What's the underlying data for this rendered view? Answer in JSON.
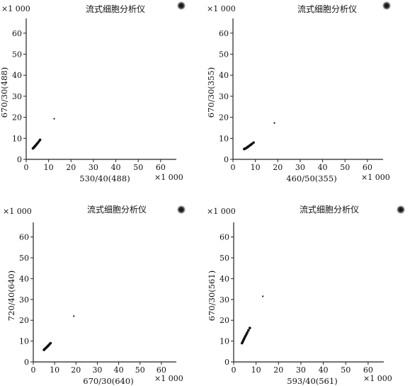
{
  "chart_data": [
    {
      "type": "scatter",
      "title": "流式细胞分析仪",
      "xlabel": "530/40(488)",
      "ylabel": "670/30(488)",
      "x_multiplier": "×1 000",
      "y_multiplier": "×1 000",
      "xlim": [
        0,
        67
      ],
      "ylim": [
        0,
        67
      ],
      "xticks": [
        0,
        10,
        20,
        30,
        40,
        50,
        60
      ],
      "yticks": [
        0,
        10,
        20,
        30,
        40,
        50,
        60
      ],
      "grid": false,
      "series": [
        {
          "x": [
            3.0,
            3.3,
            3.6,
            3.9,
            4.2,
            4.5,
            4.9,
            5.3,
            5.8,
            6.2,
            12.5
          ],
          "y": [
            5.2,
            5.5,
            5.9,
            6.2,
            6.6,
            7.0,
            7.5,
            8.0,
            8.7,
            9.3,
            19.3
          ]
        }
      ]
    },
    {
      "type": "scatter",
      "title": "流式细胞分析仪",
      "xlabel": "460/50(355)",
      "ylabel": "670/30(355)",
      "x_multiplier": "×1 000",
      "y_multiplier": "×1 000",
      "xlim": [
        0,
        67
      ],
      "ylim": [
        0,
        67
      ],
      "xticks": [
        0,
        10,
        20,
        30,
        40,
        50,
        60
      ],
      "yticks": [
        0,
        10,
        20,
        30,
        40,
        50,
        60
      ],
      "grid": false,
      "series": [
        {
          "x": [
            5.0,
            5.4,
            5.8,
            6.2,
            6.6,
            7.0,
            7.5,
            8.0,
            8.5,
            9.2,
            18.5
          ],
          "y": [
            4.9,
            5.1,
            5.3,
            5.6,
            5.9,
            6.2,
            6.6,
            7.0,
            7.4,
            8.0,
            17.3
          ]
        }
      ]
    },
    {
      "type": "scatter",
      "title": "流式细胞分析仪",
      "xlabel": "670/30(640)",
      "ylabel": "720/40(640)",
      "x_multiplier": "×1 000",
      "y_multiplier": "×1 000",
      "xlim": [
        0,
        67
      ],
      "ylim": [
        0,
        67
      ],
      "xticks": [
        0,
        10,
        20,
        30,
        40,
        50,
        60
      ],
      "yticks": [
        0,
        10,
        20,
        30,
        40,
        50,
        60
      ],
      "grid": false,
      "series": [
        {
          "x": [
            5.0,
            5.3,
            5.6,
            6.0,
            6.4,
            6.8,
            7.2,
            7.6,
            8.1,
            19.0
          ],
          "y": [
            5.8,
            6.1,
            6.4,
            6.8,
            7.2,
            7.6,
            8.0,
            8.5,
            9.0,
            22.0
          ]
        }
      ]
    },
    {
      "type": "scatter",
      "title": "流式细胞分析仪",
      "xlabel": "593/40(561)",
      "ylabel": "670/30(561)",
      "x_multiplier": "×1 000",
      "y_multiplier": "×1 000",
      "xlim": [
        0,
        67
      ],
      "ylim": [
        0,
        67
      ],
      "xticks": [
        0,
        10,
        20,
        30,
        40,
        50,
        60
      ],
      "yticks": [
        0,
        10,
        20,
        30,
        40,
        50,
        60
      ],
      "grid": false,
      "series": [
        {
          "x": [
            3.7,
            4.0,
            4.3,
            4.6,
            4.9,
            5.3,
            5.7,
            6.1,
            6.6,
            7.2,
            13.0
          ],
          "y": [
            9.0,
            9.6,
            10.3,
            11.0,
            11.7,
            12.5,
            13.3,
            14.2,
            15.2,
            16.3,
            31.5
          ]
        }
      ]
    }
  ]
}
